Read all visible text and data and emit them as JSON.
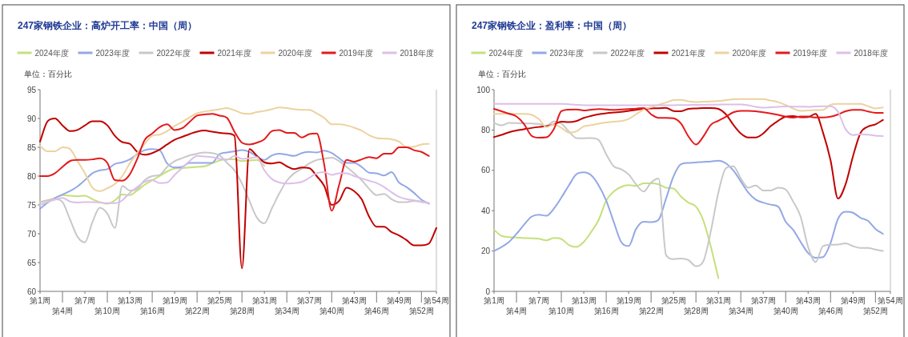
{
  "chart_data": [
    {
      "type": "line",
      "title": "247家钢铁企业：高炉开工率：中国（周）",
      "annotations": [
        "单位：百分比"
      ],
      "legend": "top",
      "categories": [
        "第1周",
        null,
        null,
        "第4周",
        null,
        null,
        "第7周",
        null,
        null,
        "第10周",
        null,
        null,
        "第13周",
        null,
        null,
        "第16周",
        null,
        null,
        "第19周",
        null,
        null,
        "第22周",
        null,
        null,
        "第25周",
        null,
        null,
        "第28周",
        null,
        null,
        "第31周",
        null,
        null,
        "第34周",
        null,
        null,
        "第37周",
        null,
        null,
        "第40周",
        null,
        null,
        "第43周",
        null,
        null,
        "第46周",
        null,
        null,
        "第49周",
        null,
        null,
        "第52周",
        null,
        "第54周"
      ],
      "ylim": [
        60,
        95
      ],
      "yticks": [
        60,
        65,
        70,
        75,
        80,
        85,
        90,
        95
      ],
      "series": [
        {
          "name": "2024年度",
          "color": "#c5e07a",
          "values": [
            75.5,
            75.8,
            76.2,
            76.7,
            76.6,
            76.5,
            76.6,
            76,
            75.5,
            75.2,
            75.8,
            76.8,
            76.7,
            77.5,
            78.5,
            79.3,
            80,
            80.8,
            81.3,
            81.4,
            81.5,
            81.6,
            81.7,
            82.2,
            82.7,
            82.9,
            82.9,
            82.6,
            82.7,
            82.8,
            81.8,
            null,
            null,
            null,
            null,
            null,
            null,
            null,
            null,
            null,
            null,
            null,
            null,
            null,
            null,
            null,
            null,
            null,
            null,
            null,
            null,
            null,
            null,
            null
          ]
        },
        {
          "name": "2023年度",
          "color": "#93a8e6",
          "values": [
            74.3,
            75.4,
            76.2,
            76.8,
            77.4,
            78.2,
            79.3,
            80.5,
            81,
            81.2,
            82.1,
            82.4,
            82.9,
            83.8,
            84.5,
            84.7,
            84.5,
            82.2,
            81.5,
            81.6,
            82.3,
            82.3,
            82.3,
            82.3,
            83.8,
            84.1,
            84.3,
            84.5,
            84.2,
            83.4,
            82.8,
            83.6,
            83.9,
            83.7,
            83.5,
            84,
            84.2,
            84.1,
            84.4,
            84,
            83.1,
            82.3,
            82.3,
            81.6,
            80.6,
            80.5,
            80.1,
            80.7,
            78.9,
            78.1,
            77.1,
            75.9,
            75.2,
            null
          ]
        },
        {
          "name": "2022年度",
          "color": "#c8c8c8",
          "values": [
            75.5,
            75.8,
            76,
            75.5,
            72.5,
            69.5,
            68.5,
            72,
            74.5,
            73.5,
            71,
            78.3,
            77.5,
            77.8,
            79.3,
            80,
            80.2,
            81.6,
            82.6,
            83.1,
            83.6,
            83.9,
            84.1,
            84,
            83.6,
            82.3,
            81,
            78.7,
            75.7,
            72.8,
            71.8,
            74.4,
            77,
            79.2,
            80.5,
            81.3,
            82.2,
            82.8,
            83,
            83.2,
            82.6,
            81.6,
            80.5,
            79.3,
            77.8,
            76.7,
            76.9,
            76,
            75.5,
            75.5,
            75.7,
            75.5,
            75.3,
            null
          ]
        },
        {
          "name": "2021年度",
          "color": "#c00000",
          "values": [
            86,
            89.5,
            90,
            88.8,
            87.8,
            88,
            88.8,
            89.5,
            89.5,
            88.8,
            87,
            85.9,
            85.6,
            84.2,
            83.7,
            84,
            84.6,
            85.5,
            86.3,
            86.8,
            87.3,
            87.7,
            87.9,
            87.7,
            87.5,
            87.4,
            87,
            64,
            84.7,
            83.5,
            82.4,
            82.2,
            82.4,
            81.7,
            81.2,
            81.5,
            81.4,
            80,
            78.3,
            75,
            75.7,
            78,
            77.4,
            76,
            73,
            71.2,
            71.2,
            70.3,
            69.7,
            68.9,
            68,
            68,
            68.3,
            71
          ]
        },
        {
          "name": "2020年度",
          "color": "#ecd29f",
          "values": [
            85.2,
            84.3,
            84.3,
            85,
            84.7,
            82.6,
            80.5,
            78,
            77.4,
            77.9,
            78.6,
            80,
            82.2,
            84,
            85.6,
            87,
            87.2,
            87.8,
            88.7,
            89.4,
            90.2,
            90.9,
            91.2,
            91.4,
            91.6,
            91.8,
            91.4,
            90.9,
            90.8,
            91.1,
            91.3,
            91.6,
            91.9,
            91.8,
            91.6,
            91.5,
            91.5,
            90.9,
            90.1,
            89,
            89,
            88.8,
            88.4,
            87.9,
            87.1,
            86.6,
            86.5,
            86.4,
            86,
            85,
            85.1,
            85.5,
            85.6,
            null
          ]
        },
        {
          "name": "2019年度",
          "color": "#e31a1c",
          "values": [
            80,
            80,
            80.5,
            81.6,
            82.6,
            82.8,
            82.8,
            82.9,
            83.1,
            82.3,
            79.3,
            79.2,
            80.3,
            83,
            86.3,
            87.4,
            88.5,
            89,
            88,
            88.3,
            89.4,
            90.5,
            90.7,
            90.8,
            90.5,
            90.1,
            87.7,
            85.8,
            85.5,
            85.8,
            86.4,
            87.8,
            88,
            87.5,
            87.5,
            86.7,
            87.3,
            87.4,
            82,
            74,
            78.5,
            82.8,
            82.5,
            82.9,
            83.3,
            83.1,
            83.9,
            83.9,
            85,
            85,
            84.5,
            84.2,
            83.5,
            null
          ]
        },
        {
          "name": "2018年度",
          "color": "#dcbfe8",
          "values": [
            75,
            75.5,
            75.9,
            76.2,
            75.6,
            75.4,
            75.5,
            75.5,
            75.4,
            75.3,
            75.3,
            75.8,
            77.1,
            78.1,
            79,
            79.3,
            78.8,
            78.9,
            80.2,
            81.4,
            82.6,
            83.5,
            83.4,
            83.3,
            83,
            82.8,
            83.5,
            83,
            83.1,
            83.3,
            81,
            79.5,
            78.9,
            78.7,
            78.8,
            79,
            79.7,
            80.5,
            80.7,
            80.2,
            80.5,
            80.5,
            80,
            79.6,
            79.2,
            78.8,
            78.1,
            77.2,
            76.4,
            76,
            75.8,
            75.6,
            75.3,
            null
          ]
        }
      ]
    },
    {
      "type": "line",
      "title": "247家钢铁企业：盈利率：中国（周）",
      "annotations": [
        "单位：百分比"
      ],
      "legend": "top",
      "categories": [
        "第1周",
        null,
        null,
        "第4周",
        null,
        null,
        "第7周",
        null,
        null,
        "第10周",
        null,
        null,
        "第13周",
        null,
        null,
        "第16周",
        null,
        null,
        "第19周",
        null,
        null,
        "第22周",
        null,
        null,
        "第25周",
        null,
        null,
        "第28周",
        null,
        null,
        "第31周",
        null,
        null,
        "第34周",
        null,
        null,
        "第37周",
        null,
        null,
        "第40周",
        null,
        null,
        "第43周",
        null,
        null,
        "第46周",
        null,
        null,
        "第49周",
        null,
        null,
        "第52周",
        null,
        "第54周"
      ],
      "ylim": [
        0,
        100
      ],
      "yticks": [
        0,
        20,
        40,
        60,
        80,
        100
      ],
      "series": [
        {
          "name": "2024年度",
          "color": "#c5e07a",
          "values": [
            30.5,
            27.5,
            26.9,
            26.7,
            26.4,
            26.3,
            26.1,
            25.3,
            26.5,
            26,
            23,
            22,
            24.5,
            29.5,
            35.5,
            45,
            49.5,
            51.8,
            52.7,
            52.3,
            53.6,
            53.6,
            53.1,
            51.4,
            51,
            47,
            44,
            42,
            35,
            22,
            6.5,
            null,
            null,
            null,
            null,
            null,
            null,
            null,
            null,
            null,
            null,
            null,
            null,
            null,
            null,
            null,
            null,
            null,
            null,
            null,
            null,
            null,
            null,
            null
          ]
        },
        {
          "name": "2023年度",
          "color": "#93a8e6",
          "values": [
            20,
            22,
            24.5,
            28.5,
            33,
            37,
            38,
            37.5,
            41,
            46.5,
            52.5,
            58,
            59,
            57.5,
            52.5,
            45,
            34.5,
            24.5,
            22.5,
            31,
            34.5,
            34.3,
            35.5,
            46,
            57,
            63,
            63.7,
            63.9,
            64.2,
            64.4,
            64.8,
            63.5,
            60,
            54.5,
            49,
            45.5,
            44,
            43,
            42,
            34.5,
            30.5,
            24.5,
            19,
            16.7,
            17,
            24,
            36,
            39.5,
            39,
            36.5,
            35,
            31,
            28.5,
            null
          ]
        },
        {
          "name": "2022年度",
          "color": "#c8c8c8",
          "values": [
            83.5,
            82.3,
            83.5,
            83.4,
            83.3,
            83.2,
            83,
            82,
            84.2,
            83.2,
            79.3,
            76,
            75.9,
            76,
            75,
            68,
            62,
            60.6,
            58,
            53,
            49.5,
            54,
            56,
            18,
            16,
            16.3,
            15.5,
            12.5,
            15,
            30,
            49,
            61,
            62,
            56,
            51.4,
            52.5,
            50,
            50,
            51.4,
            50.5,
            44.5,
            37,
            22,
            14.5,
            22.5,
            23.1,
            23.2,
            23.8,
            22.4,
            21.5,
            21.5,
            20.7,
            20,
            null
          ]
        },
        {
          "name": "2021年度",
          "color": "#c00000",
          "values": [
            76.5,
            77.6,
            78.9,
            79.8,
            80.4,
            81,
            81.5,
            81.9,
            82.8,
            84.1,
            83.9,
            84.4,
            86,
            87,
            87.8,
            88.3,
            88.7,
            89,
            89.5,
            90,
            90.5,
            90.7,
            90.8,
            91,
            89.4,
            89.3,
            90.5,
            90.7,
            90.9,
            90.9,
            90.5,
            87.8,
            82.6,
            78.3,
            76.3,
            76.3,
            78.3,
            81.9,
            84.6,
            86.6,
            86.9,
            86.3,
            86.4,
            88,
            78.6,
            65,
            46,
            53,
            67,
            78.5,
            81.7,
            82.8,
            85,
            null
          ]
        },
        {
          "name": "2020年度",
          "color": "#ecd29f",
          "values": [
            88,
            88,
            88,
            88,
            88,
            87.6,
            85.4,
            81.4,
            82.7,
            81.1,
            78.7,
            79.3,
            81.8,
            82.4,
            83.1,
            83.7,
            84.1,
            84.4,
            85.5,
            87.8,
            90.1,
            91.3,
            92.5,
            93.6,
            94.8,
            94.9,
            94.2,
            93.8,
            94,
            94.1,
            94.4,
            94.8,
            95.2,
            95.3,
            95.3,
            95.3,
            95.3,
            94.6,
            93.8,
            92.4,
            90.6,
            89.5,
            89.7,
            89.9,
            90,
            92.5,
            93,
            93,
            93,
            93,
            91.8,
            90.7,
            91.2,
            null
          ]
        },
        {
          "name": "2019年度",
          "color": "#e31a1c",
          "values": [
            90.5,
            89.3,
            88.1,
            86.7,
            83,
            77.2,
            76.2,
            76.4,
            80.5,
            89.3,
            90.1,
            90.2,
            89.7,
            90.1,
            90.4,
            90.2,
            90,
            90.2,
            90.4,
            90.6,
            90.9,
            87.8,
            86,
            86,
            85.8,
            83.2,
            76.8,
            72.8,
            76.8,
            82.6,
            84.6,
            86.6,
            88.8,
            89.5,
            89.5,
            89.3,
            88.8,
            88.2,
            87.5,
            86.6,
            86.1,
            86.7,
            86.7,
            86.2,
            86.2,
            86.6,
            87.7,
            89.3,
            90,
            90,
            89.2,
            88.5,
            88.5,
            null
          ]
        },
        {
          "name": "2018年度",
          "color": "#dcbfe8",
          "values": [
            93,
            93,
            93,
            93,
            93,
            93,
            93,
            93,
            93,
            93,
            92.8,
            92.5,
            92.3,
            92.3,
            92.3,
            92.3,
            92.3,
            92.3,
            92.3,
            92.3,
            92.3,
            92.3,
            92.3,
            92.3,
            92.3,
            92.4,
            92.4,
            92.5,
            92.5,
            92.6,
            92.6,
            92.7,
            92.7,
            92.7,
            92.3,
            91.5,
            91.1,
            91.3,
            91.5,
            91.7,
            91.6,
            91.6,
            91.5,
            91.7,
            91.8,
            91.8,
            89,
            80.5,
            77.5,
            77.9,
            77.7,
            77.2,
            77,
            null
          ]
        }
      ]
    }
  ]
}
